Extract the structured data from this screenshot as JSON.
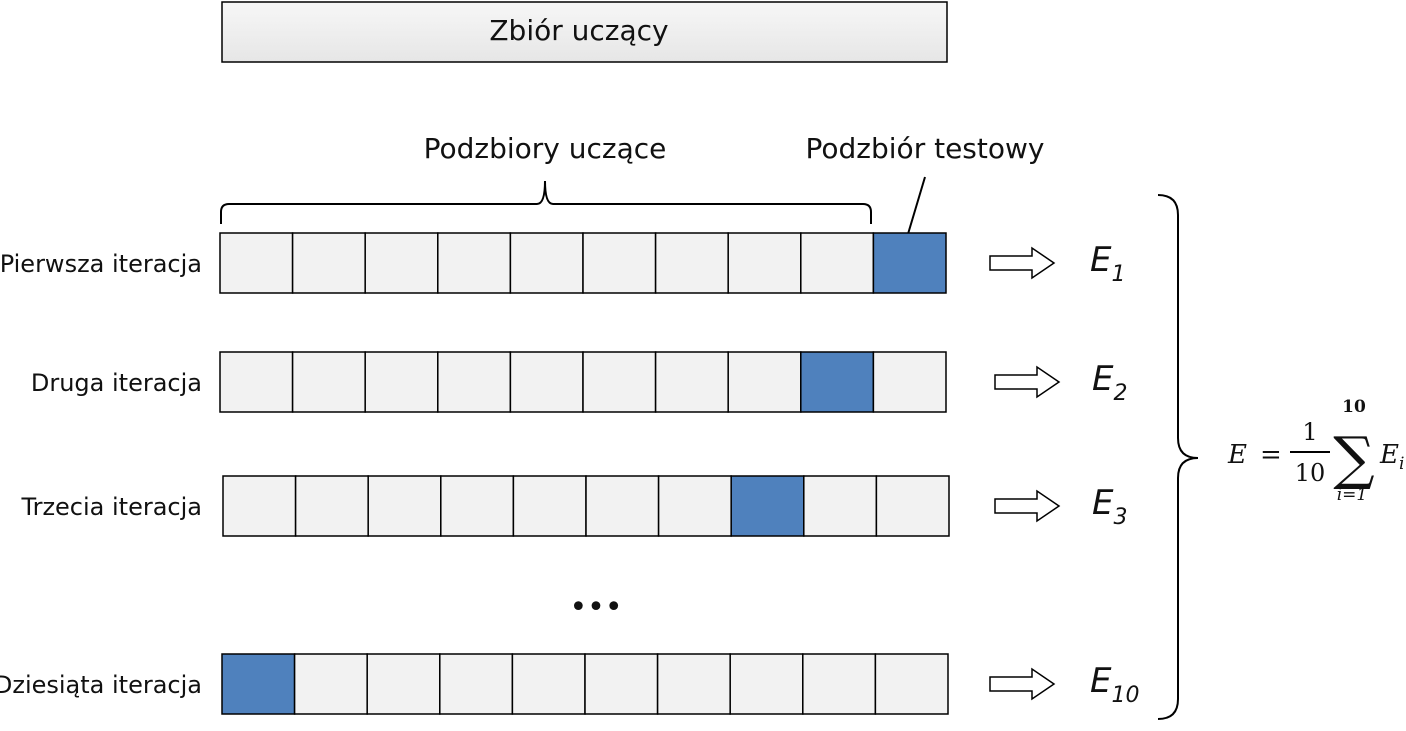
{
  "title": "Zbiór uczący",
  "labels": {
    "train_subsets": "Podzbiory uczące",
    "test_subset": "Podzbiór testowy",
    "ellipsis": "•••"
  },
  "folds_per_row": 10,
  "colors": {
    "cell_fill": "#f2f2f2",
    "test_fill": "#4f81bd",
    "stroke": "#000000",
    "title_fill": "#efefef"
  },
  "iterations": [
    {
      "label": "Pierwsza iteracja",
      "test_index": 9,
      "err_base": "E",
      "err_sub": "1"
    },
    {
      "label": "Druga iteracja",
      "test_index": 8,
      "err_base": "E",
      "err_sub": "2"
    },
    {
      "label": "Trzecia iteracja",
      "test_index": 7,
      "err_base": "E",
      "err_sub": "3"
    },
    {
      "label": "Dziesiąta iteracja",
      "test_index": 0,
      "err_base": "E",
      "err_sub": "10"
    }
  ],
  "formula": {
    "lhs": "E",
    "eq": "=",
    "numerator": "1",
    "denominator": "10",
    "sum_symbol": "∑",
    "sum_upper": "10",
    "sum_lower": "i=1",
    "term_base": "E",
    "term_sub": "i"
  }
}
